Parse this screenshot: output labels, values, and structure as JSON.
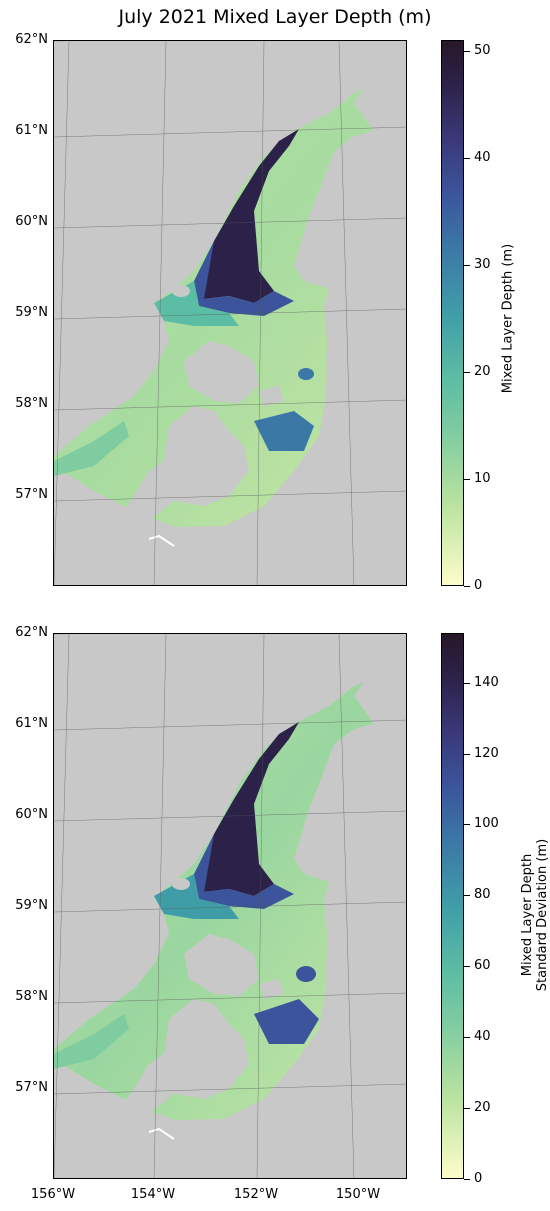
{
  "figure": {
    "title": "July 2021 Mixed Layer Depth (m)"
  },
  "colors": {
    "land": "#c8c8c8",
    "colormap": [
      "#fdfdc9",
      "#b9e29f",
      "#7fcca1",
      "#5bbda3",
      "#3f9da8",
      "#3b78a6",
      "#3b549b",
      "#3a3878",
      "#2c2249",
      "#281728"
    ]
  },
  "panels": [
    {
      "name": "mixed-layer-depth",
      "lat_labels": [
        "62°N",
        "61°N",
        "60°N",
        "59°N",
        "58°N",
        "57°N"
      ],
      "colorbar": {
        "label": "Mixed Layer Depth (m)",
        "ticks": [
          "0",
          "10",
          "20",
          "30",
          "40",
          "50"
        ],
        "range": [
          0,
          51
        ]
      }
    },
    {
      "name": "mixed-layer-depth-std",
      "lat_labels": [
        "62°N",
        "61°N",
        "60°N",
        "59°N",
        "58°N",
        "57°N"
      ],
      "lon_labels": [
        "156°W",
        "154°W",
        "152°W",
        "150°W"
      ],
      "colorbar": {
        "label_line1": "Mixed Layer Depth",
        "label_line2": "Standard Deviation (m)",
        "ticks": [
          "0",
          "20",
          "40",
          "60",
          "80",
          "100",
          "120",
          "140"
        ],
        "range": [
          0,
          154
        ]
      }
    }
  ]
}
